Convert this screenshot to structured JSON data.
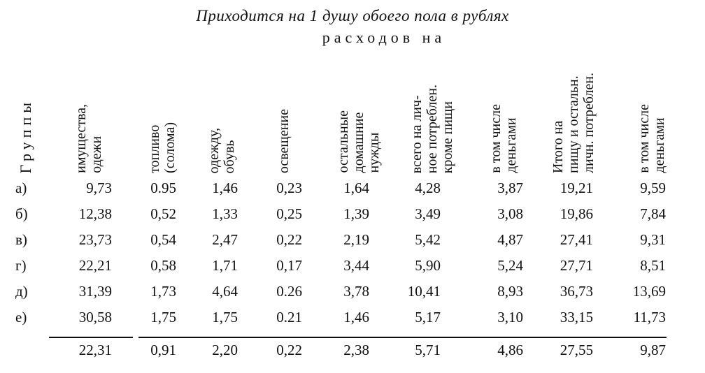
{
  "title": "Приходится на 1 душу обоего пола в рублях",
  "subtitle": "расходов на",
  "groups_header": "Группы",
  "columns": [
    "имущества,\nодежи",
    "топливо\n(солома)",
    "одежду,\nобувь",
    "освещение",
    "остальные\nдомашние\nнужды",
    "всего на лич-\nное потреблен.\nкроме пищи",
    "в том числе\nденьгами",
    "Итого на\nпищу и остальн.\nличн. потреблен.",
    "в том числе\nденьгами"
  ],
  "rows": [
    {
      "label": "а)",
      "values": [
        "9,73",
        "0.95",
        "1,46",
        "0,23",
        "1,64",
        "4,28",
        "3,87",
        "19,21",
        "9,59"
      ]
    },
    {
      "label": "б)",
      "values": [
        "12,38",
        "0,52",
        "1,33",
        "0,25",
        "1,39",
        "3,49",
        "3,08",
        "19,86",
        "7,84"
      ]
    },
    {
      "label": "в)",
      "values": [
        "23,73",
        "0,54",
        "2,47",
        "0,22",
        "2,19",
        "5,42",
        "4,87",
        "27,41",
        "9,31"
      ]
    },
    {
      "label": "г)",
      "values": [
        "22,21",
        "0,58",
        "1,71",
        "0,17",
        "3,44",
        "5,90",
        "5,24",
        "27,71",
        "8,51"
      ]
    },
    {
      "label": "д)",
      "values": [
        "31,39",
        "1,73",
        "4,64",
        "0.26",
        "3,78",
        "10,41",
        "8,93",
        "36,73",
        "13,69"
      ]
    },
    {
      "label": "е)",
      "values": [
        "30,58",
        "1,75",
        "1,75",
        "0.21",
        "1,46",
        "5,17",
        "3,10",
        "33,15",
        "11,73"
      ]
    }
  ],
  "totals": [
    "22,31",
    "0,91",
    "2,20",
    "0,22",
    "2,38",
    "5,71",
    "4,86",
    "27,55",
    "9,87"
  ]
}
